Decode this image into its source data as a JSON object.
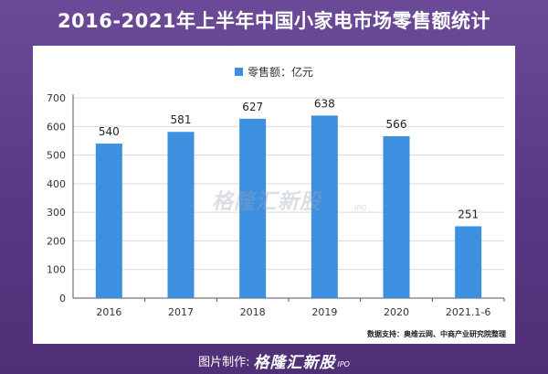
{
  "title": "2016-2021年上半年中国小家电市场零售额统计",
  "footer": {
    "label": "图片制作:",
    "brand": "格隆汇新股",
    "brand_sub": "IPO"
  },
  "watermark": {
    "text": "格隆汇新股",
    "sub": "IPO"
  },
  "source": "数据支持：奥维云网、中商产业研究院整理",
  "colors": {
    "bar": "#3d8fe0",
    "background": "#5b3a86",
    "title_text": "#ffffff"
  },
  "chart_data": {
    "type": "bar",
    "categories": [
      "2016",
      "2017",
      "2018",
      "2019",
      "2020",
      "2021.1-6"
    ],
    "series": [
      {
        "name": "零售额：亿元",
        "values": [
          540,
          581,
          627,
          638,
          566,
          251
        ]
      }
    ],
    "data_labels": [
      "540",
      "581",
      "627",
      "638",
      "566",
      "251"
    ],
    "ylim": [
      0,
      700
    ],
    "yticks": [
      0,
      100,
      200,
      300,
      400,
      500,
      600,
      700
    ],
    "grid": true,
    "legend_position": "top-center"
  }
}
